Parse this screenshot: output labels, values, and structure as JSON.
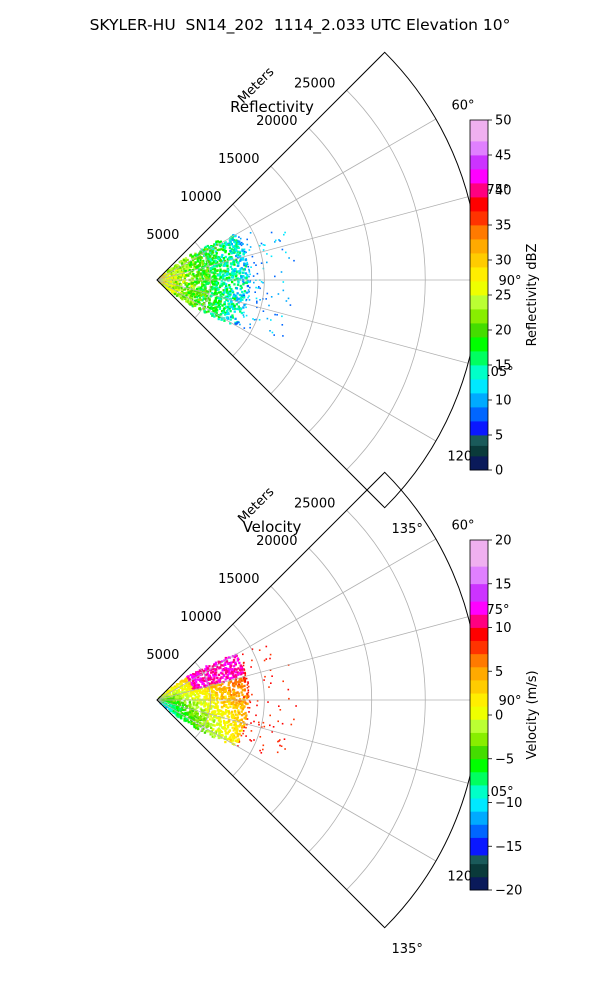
{
  "figure": {
    "title": "SKYLER-HU  SN14_202  1114_2.033 UTC Elevation 10°"
  },
  "chart_data": [
    {
      "type": "polar-sector-radar",
      "title": "Reflectivity",
      "r_label": "Meters",
      "r_ticks": [
        5000,
        10000,
        15000,
        20000,
        25000
      ],
      "r_tick_labels": [
        "5000",
        "10000",
        "15000",
        "20000",
        "25000"
      ],
      "r_lim": [
        0,
        30000
      ],
      "theta_range_deg": [
        45,
        135
      ],
      "theta_ticks_deg": [
        60,
        75,
        90,
        105,
        120,
        135
      ],
      "theta_tick_labels": [
        "60°",
        "75°",
        "90°",
        "105°",
        "120°",
        "135°"
      ],
      "grid": true,
      "data_extent_m": 8500,
      "data_description": "radar reflectivity returns concentrated within ~9 km of the radar",
      "colorbar": {
        "label": "Reflectivity dBZ",
        "range": [
          0,
          50
        ],
        "ticks": [
          0,
          5,
          10,
          15,
          20,
          25,
          30,
          35,
          40,
          45,
          50
        ],
        "tick_labels": [
          "0",
          "5",
          "10",
          "15",
          "20",
          "25",
          "30",
          "35",
          "40",
          "45",
          "50"
        ],
        "stops": [
          {
            "v": 0,
            "c": "#0a1a5a"
          },
          {
            "v": 2,
            "c": "#0a3a3a"
          },
          {
            "v": 3.5,
            "c": "#1a5a5a"
          },
          {
            "v": 5,
            "c": "#0a18ff"
          },
          {
            "v": 7,
            "c": "#0066ff"
          },
          {
            "v": 9,
            "c": "#00aaff"
          },
          {
            "v": 11,
            "c": "#00e8ff"
          },
          {
            "v": 13,
            "c": "#00ffc8"
          },
          {
            "v": 15,
            "c": "#00ff60"
          },
          {
            "v": 17,
            "c": "#00ff00"
          },
          {
            "v": 19,
            "c": "#44dd00"
          },
          {
            "v": 21,
            "c": "#88ee00"
          },
          {
            "v": 23,
            "c": "#bbff33"
          },
          {
            "v": 25,
            "c": "#eeff00"
          },
          {
            "v": 27,
            "c": "#ffee00"
          },
          {
            "v": 29,
            "c": "#ffcc00"
          },
          {
            "v": 31,
            "c": "#ffaa00"
          },
          {
            "v": 33,
            "c": "#ff7a00"
          },
          {
            "v": 35,
            "c": "#ff3300"
          },
          {
            "v": 37,
            "c": "#ff0000"
          },
          {
            "v": 39,
            "c": "#ff0080"
          },
          {
            "v": 41,
            "c": "#ff00ff"
          },
          {
            "v": 43,
            "c": "#cc33ff"
          },
          {
            "v": 45,
            "c": "#e080ff"
          },
          {
            "v": 47,
            "c": "#f0b0f0"
          },
          {
            "v": 50,
            "c": "#ffe8ff"
          }
        ]
      }
    },
    {
      "type": "polar-sector-radar",
      "title": "Velocity",
      "r_label": "Meters",
      "r_ticks": [
        5000,
        10000,
        15000,
        20000,
        25000
      ],
      "r_tick_labels": [
        "5000",
        "10000",
        "15000",
        "20000",
        "25000"
      ],
      "r_lim": [
        0,
        30000
      ],
      "theta_range_deg": [
        45,
        135
      ],
      "theta_ticks_deg": [
        60,
        75,
        90,
        105,
        120,
        135
      ],
      "theta_tick_labels": [
        "60°",
        "75°",
        "90°",
        "105°",
        "120°",
        "135°"
      ],
      "grid": true,
      "data_extent_m": 8500,
      "data_description": "radial velocity returns concentrated within ~9 km of the radar",
      "colorbar": {
        "label": "Velocity (m/s)",
        "range": [
          -20,
          20
        ],
        "ticks": [
          -20,
          -15,
          -10,
          -5,
          0,
          5,
          10,
          15,
          20
        ],
        "tick_labels": [
          "−20",
          "−15",
          "−10",
          "−5",
          "0",
          "5",
          "10",
          "15",
          "20"
        ],
        "stops": [
          {
            "v": -20,
            "c": "#0a1a5a"
          },
          {
            "v": -18.5,
            "c": "#0a3a3a"
          },
          {
            "v": -17,
            "c": "#1a5a5a"
          },
          {
            "v": -16,
            "c": "#0a18ff"
          },
          {
            "v": -14,
            "c": "#0066ff"
          },
          {
            "v": -12.5,
            "c": "#00aaff"
          },
          {
            "v": -11,
            "c": "#00e8ff"
          },
          {
            "v": -9.5,
            "c": "#00ffc8"
          },
          {
            "v": -8,
            "c": "#00ff60"
          },
          {
            "v": -6.5,
            "c": "#00ff00"
          },
          {
            "v": -5,
            "c": "#44dd00"
          },
          {
            "v": -3.5,
            "c": "#88ee00"
          },
          {
            "v": -2,
            "c": "#bbff33"
          },
          {
            "v": -0.5,
            "c": "#eeff00"
          },
          {
            "v": 1,
            "c": "#ffee00"
          },
          {
            "v": 2.5,
            "c": "#ffcc00"
          },
          {
            "v": 4,
            "c": "#ffaa00"
          },
          {
            "v": 5.5,
            "c": "#ff7a00"
          },
          {
            "v": 7,
            "c": "#ff3300"
          },
          {
            "v": 8.5,
            "c": "#ff0000"
          },
          {
            "v": 10,
            "c": "#ff0080"
          },
          {
            "v": 11.5,
            "c": "#ff00ff"
          },
          {
            "v": 13,
            "c": "#cc33ff"
          },
          {
            "v": 15,
            "c": "#e080ff"
          },
          {
            "v": 17,
            "c": "#f0b0f0"
          },
          {
            "v": 20,
            "c": "#ffe8ff"
          }
        ]
      }
    }
  ]
}
